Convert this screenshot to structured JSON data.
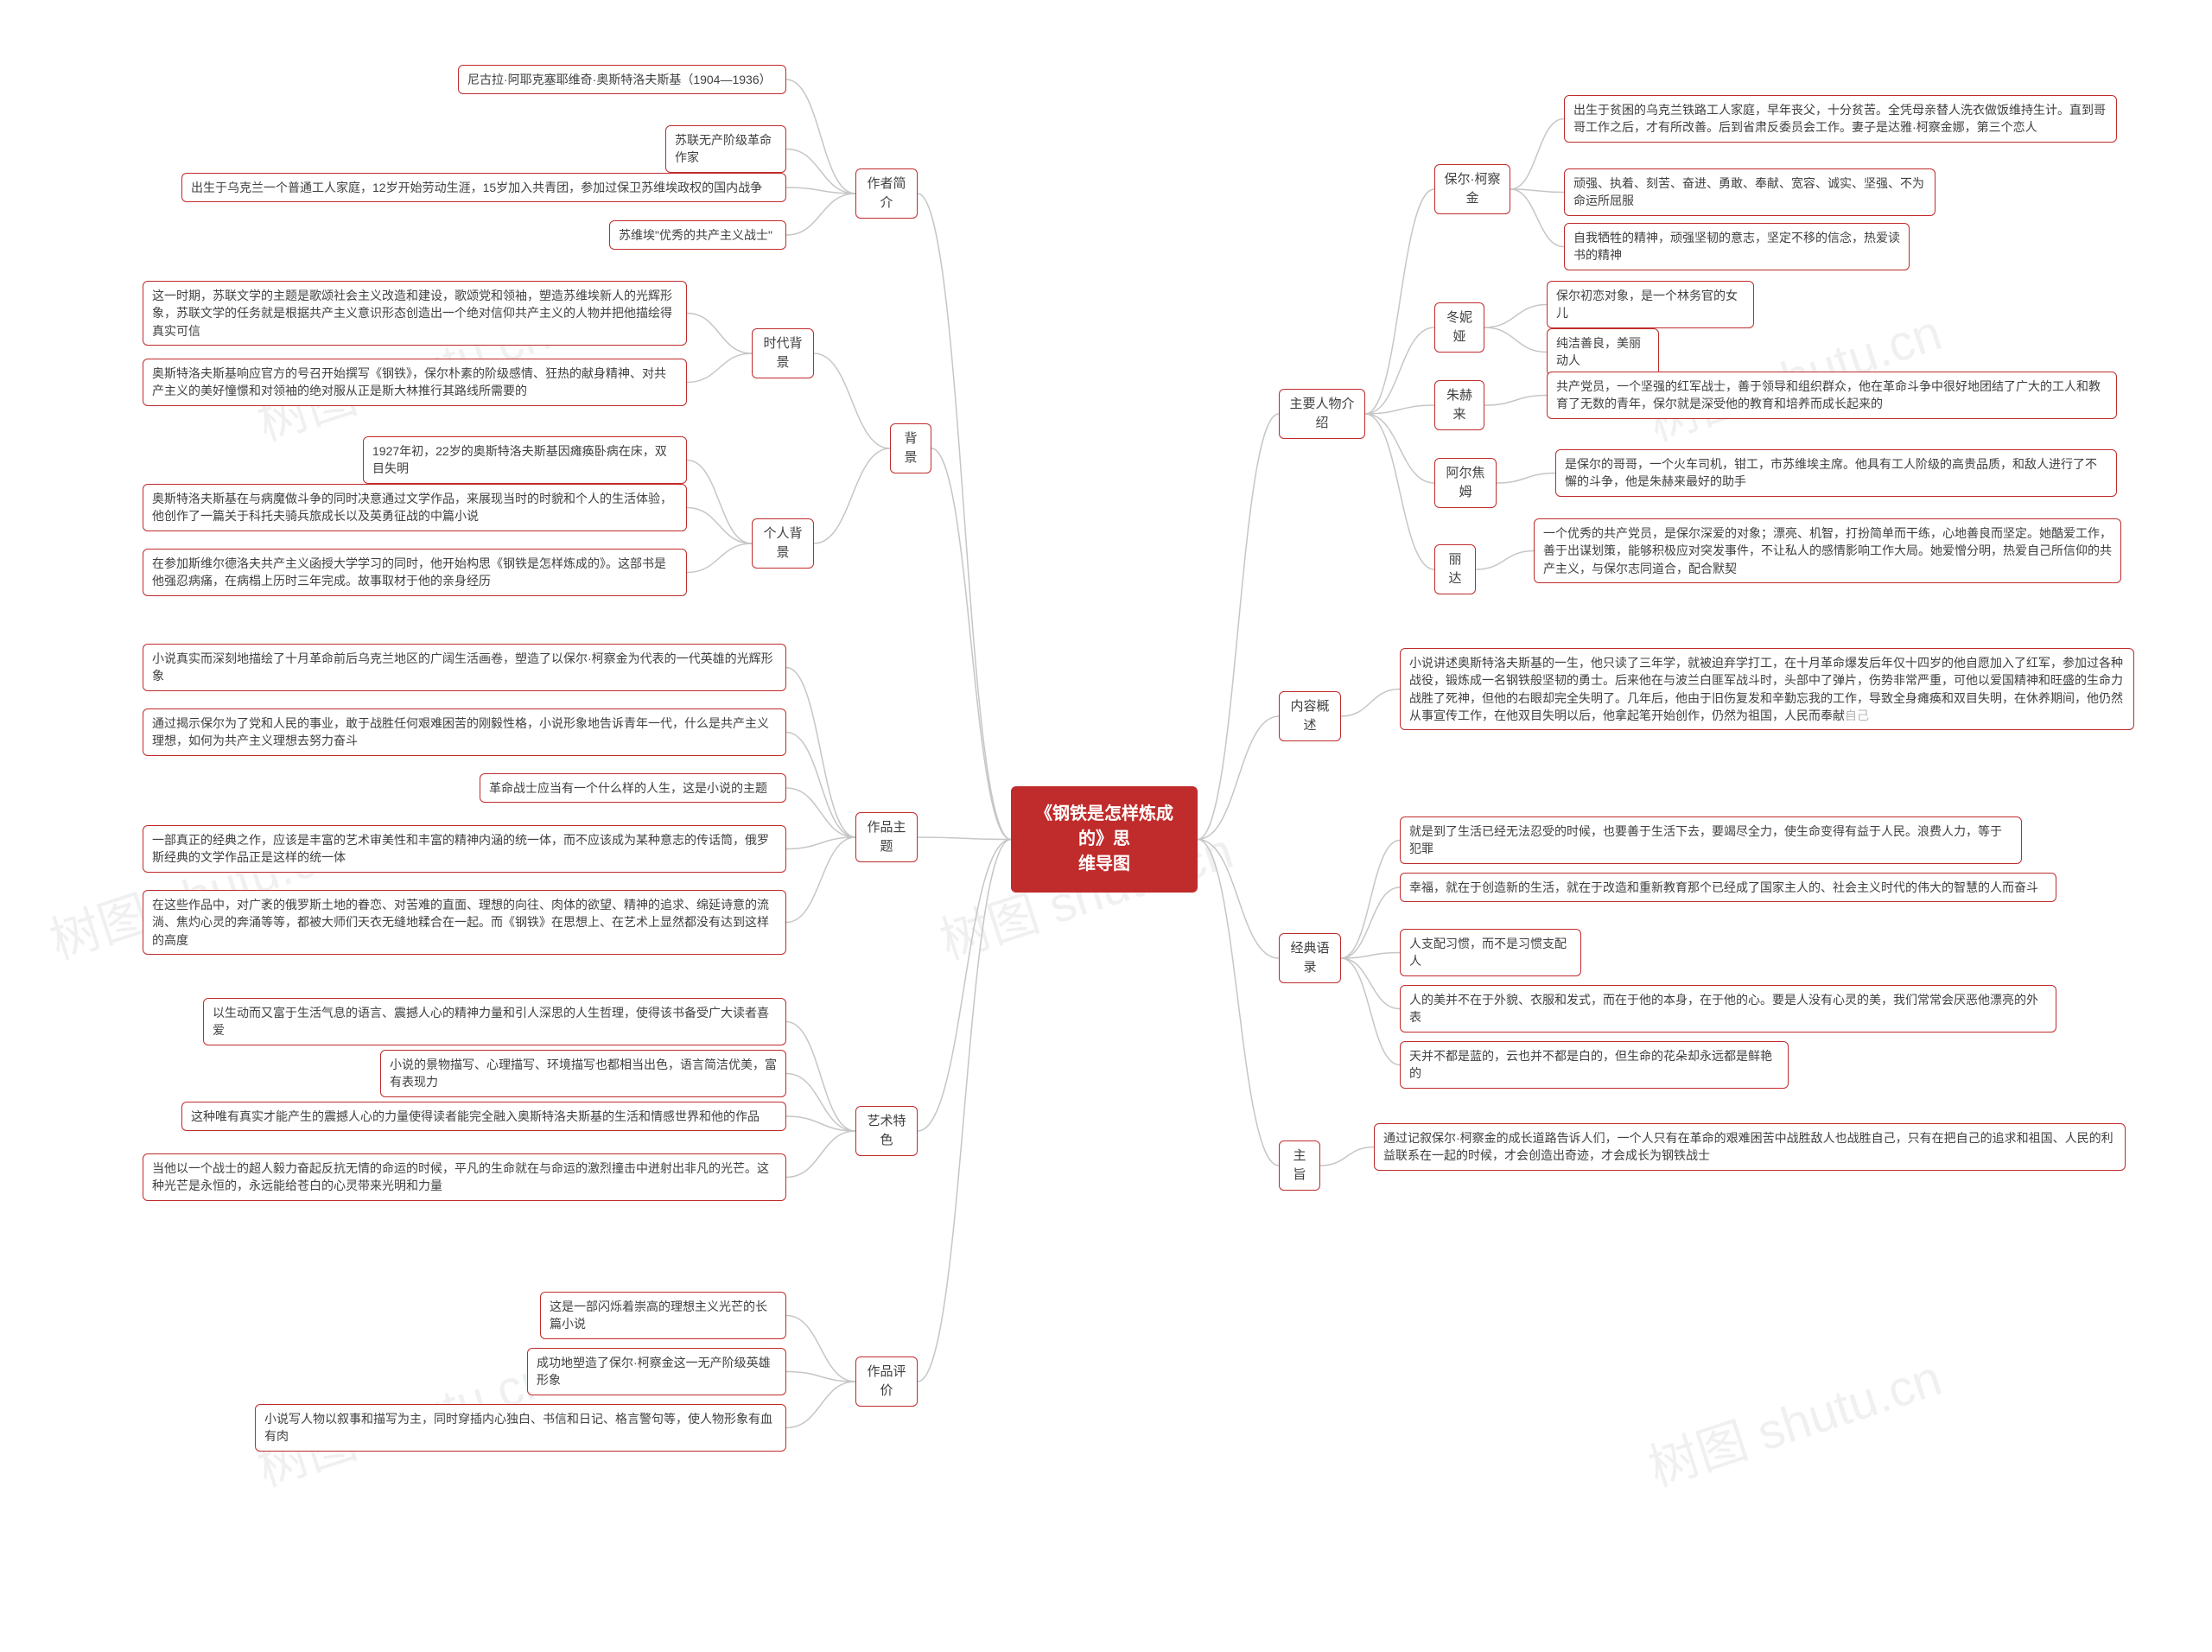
{
  "root_title_l1": "《钢铁是怎样炼成的》思",
  "root_title_l2": "维导图",
  "watermarks": [
    "树图 shutu.cn"
  ],
  "colors": {
    "primary": "#c02b2b",
    "line": "#c6c6c6",
    "text": "#404040",
    "faded": "#b8b8b8",
    "bg": "#ffffff"
  },
  "left": [
    {
      "label": "作者简介",
      "children": [
        {
          "text": "尼古拉·阿耶克塞耶维奇·奥斯特洛夫斯基（1904—1936）"
        },
        {
          "text": "苏联无产阶级革命作家"
        },
        {
          "text": "出生于乌克兰一个普通工人家庭，12岁开始劳动生涯，15岁加入共青团，参加过保卫苏维埃政权的国内战争"
        },
        {
          "text": "苏维埃\"优秀的共产主义战士\""
        }
      ]
    },
    {
      "label": "背景",
      "children": [
        {
          "label": "时代背景",
          "children": [
            {
              "text": "这一时期，苏联文学的主题是歌颂社会主义改造和建设，歌颂党和领袖，塑造苏维埃新人的光辉形象，苏联文学的任务就是根据共产主义意识形态创造出一个绝对信仰共产主义的人物并把他描绘得真实可信"
            },
            {
              "text": "奥斯特洛夫斯基响应官方的号召开始撰写《钢铁》，保尔朴素的阶级感情、狂热的献身精神、对共产主义的美好憧憬和对领袖的绝对服从正是斯大林推行其路线所需要的"
            }
          ]
        },
        {
          "label": "个人背景",
          "children": [
            {
              "text": "1927年初，22岁的奥斯特洛夫斯基因瘫痪卧病在床，双目失明"
            },
            {
              "text": "奥斯特洛夫斯基在与病魔做斗争的同时决意通过文学作品，来展现当时的时貌和个人的生活体验，他创作了一篇关于科托夫骑兵旅成长以及英勇征战的中篇小说"
            },
            {
              "text": "在参加斯维尔德洛夫共产主义函授大学学习的同时，他开始构思《钢铁是怎样炼成的》。这部书是他强忍病痛，在病榻上历时三年完成。故事取材于他的亲身经历"
            }
          ]
        }
      ]
    },
    {
      "label": "作品主题",
      "children": [
        {
          "text": "小说真实而深刻地描绘了十月革命前后乌克兰地区的广阔生活画卷，塑造了以保尔·柯察金为代表的一代英雄的光辉形象"
        },
        {
          "text": "通过揭示保尔为了党和人民的事业，敢于战胜任何艰难困苦的刚毅性格，小说形象地告诉青年一代，什么是共产主义理想，如何为共产主义理想去努力奋斗"
        },
        {
          "text": "革命战士应当有一个什么样的人生，这是小说的主题"
        },
        {
          "text": "一部真正的经典之作，应该是丰富的艺术审美性和丰富的精神内涵的统一体，而不应该成为某种意志的传话筒，俄罗斯经典的文学作品正是这样的统一体"
        },
        {
          "text": "在这些作品中，对广袤的俄罗斯土地的眷恋、对苦难的直面、理想的向往、肉体的欲望、精神的追求、绵延诗意的流淌、焦灼心灵的奔涌等等，都被大师们天衣无缝地糅合在一起。而《钢铁》在思想上、在艺术上显然都没有达到这样的高度"
        }
      ]
    },
    {
      "label": "艺术特色",
      "children": [
        {
          "text": "以生动而又富于生活气息的语言、震撼人心的精神力量和引人深思的人生哲理，使得该书备受广大读者喜爱"
        },
        {
          "text": "小说的景物描写、心理描写、环境描写也都相当出色，语言简洁优美，富有表现力"
        },
        {
          "text": "这种唯有真实才能产生的震撼人心的力量使得读者能完全融入奥斯特洛夫斯基的生活和情感世界和他的作品"
        },
        {
          "text": "当他以一个战士的超人毅力奋起反抗无情的命运的时候，平凡的生命就在与命运的激烈撞击中迸射出非凡的光芒。这种光芒是永恒的，永远能给苍白的心灵带来光明和力量"
        }
      ]
    },
    {
      "label": "作品评价",
      "children": [
        {
          "text": "这是一部闪烁着崇高的理想主义光芒的长篇小说"
        },
        {
          "text": "成功地塑造了保尔·柯察金这一无产阶级英雄形象"
        },
        {
          "text": "小说写人物以叙事和描写为主，同时穿插内心独白、书信和日记、格言警句等，使人物形象有血有肉"
        }
      ]
    }
  ],
  "right": [
    {
      "label": "主要人物介绍",
      "children": [
        {
          "label": "保尔·柯察金",
          "children": [
            {
              "text": "出生于贫困的乌克兰铁路工人家庭，早年丧父，十分贫苦。全凭母亲替人洗衣做饭维持生计。直到哥哥工作之后，才有所改善。后到省肃反委员会工作。妻子是达雅·柯察金娜，第三个恋人"
            },
            {
              "text": "顽强、执着、刻苦、奋进、勇敢、奉献、宽容、诚实、坚强、不为命运所屈服"
            },
            {
              "text": "自我牺牲的精神，顽强坚韧的意志，坚定不移的信念，热爱读书的精神"
            }
          ]
        },
        {
          "label": "冬妮娅",
          "children": [
            {
              "text": "保尔初恋对象，是一个林务官的女儿"
            },
            {
              "text": "纯洁善良，美丽动人"
            }
          ]
        },
        {
          "label": "朱赫来",
          "children": [
            {
              "text": "共产党员，一个坚强的红军战士，善于领导和组织群众，他在革命斗争中很好地团结了广大的工人和教育了无数的青年，保尔就是深受他的教育和培养而成长起来的"
            }
          ]
        },
        {
          "label": "阿尔焦姆",
          "children": [
            {
              "text": "是保尔的哥哥，一个火车司机，钳工，市苏维埃主席。他具有工人阶级的高贵品质，和敌人进行了不懈的斗争，他是朱赫来最好的助手"
            }
          ]
        },
        {
          "label": "丽达",
          "children": [
            {
              "text": "一个优秀的共产党员，是保尔深爱的对象；漂亮、机智，打扮简单而干练，心地善良而坚定。她酷爱工作，善于出谋划策，能够积极应对突发事件，不让私人的感情影响工作大局。她爱憎分明，热爱自己所信仰的共产主义，与保尔志同道合，配合默契"
            }
          ]
        }
      ]
    },
    {
      "label": "内容概述",
      "children": [
        {
          "text": "小说讲述奥斯特洛夫斯基的一生，他只读了三年学，就被迫弃学打工，在十月革命爆发后年仅十四岁的他自愿加入了红军，参加过各种战役，锻炼成一名钢铁般坚韧的勇士。后来他在与波兰白匪军战斗时，头部中了弹片，伤势非常严重，可他以爱国精神和旺盛的生命力战胜了死神，但他的右眼却完全失明了。几年后，他由于旧伤复发和辛勤忘我的工作，导致全身瘫痪和双目失明，在休养期间，他仍然从事宣传工作，在他双目失明以后，他拿起笔开始创作，仍然为祖国",
          "tail": "人民而奉献",
          "fade": "自己"
        }
      ]
    },
    {
      "label": "经典语录",
      "children": [
        {
          "text": "就是到了生活已经无法忍受的时候，也要善于生活下去，要竭尽全力，使生命变得有益于人民。浪费人力，等于犯罪"
        },
        {
          "text": "幸福，就在于创造新的生活，就在于改造和重新教育那个已经成了国家主人的、社会主义时代的伟大的智慧的人而奋斗"
        },
        {
          "text": "人支配习惯，而不是习惯支配人"
        },
        {
          "text": "人的美并不在于外貌、衣服和发式，而在于他的本身，在于他的心。要是人没有心灵的美，我们常常会厌恶他漂亮的外表"
        },
        {
          "text": "天并不都是蓝的，云也并不都是白的，但生命的花朵却永远都是鲜艳的"
        }
      ]
    },
    {
      "label": "主旨",
      "children": [
        {
          "text": "通过记叙保尔·柯察金的成长道路告诉人们，一个人只有在革命的艰难困苦中战胜敌人也战胜自己，只有在把自己的追求和祖国、人民的利益联系在一起的时候，才会创造出奇迹，才会成长为钢铁战士"
        }
      ]
    }
  ]
}
